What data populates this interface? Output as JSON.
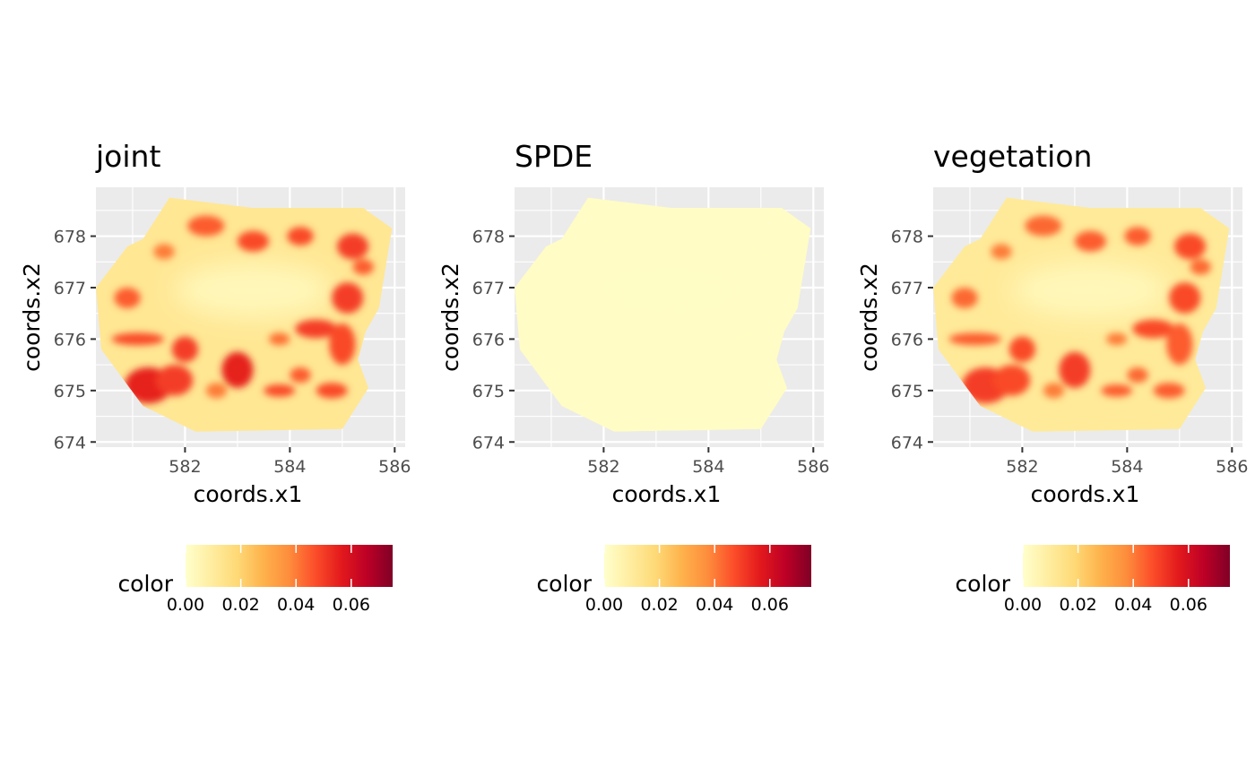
{
  "chart_data": [
    {
      "type": "heatmap",
      "title": "joint",
      "xlabel": "coords.x1",
      "ylabel": "coords.x2",
      "xlim": [
        580.3,
        586.2
      ],
      "ylim": [
        673.9,
        678.95
      ],
      "x_ticks": [
        582,
        584,
        586
      ],
      "y_ticks": [
        674,
        675,
        676,
        677,
        678
      ],
      "x_tick_labels": [
        "582",
        "584",
        "586"
      ],
      "y_tick_labels": [
        "674",
        "675",
        "676",
        "677",
        "678"
      ],
      "grid": true,
      "region_outline": [
        [
          581.7,
          678.75
        ],
        [
          583.3,
          678.55
        ],
        [
          585.4,
          678.55
        ],
        [
          585.95,
          678.15
        ],
        [
          585.7,
          676.6
        ],
        [
          585.45,
          676.15
        ],
        [
          585.3,
          675.6
        ],
        [
          585.5,
          675.05
        ],
        [
          585.0,
          674.25
        ],
        [
          582.2,
          674.2
        ],
        [
          581.2,
          674.7
        ],
        [
          580.4,
          675.8
        ],
        [
          580.3,
          677.0
        ],
        [
          580.9,
          677.8
        ],
        [
          581.2,
          677.95
        ]
      ],
      "background_value": 0.012,
      "core_center": [
        583.3,
        676.95
      ],
      "core_radius": [
        1.5,
        0.55
      ],
      "core_value": 0.004,
      "hotspots": [
        {
          "x": 581.3,
          "y": 675.1,
          "rx": 0.45,
          "ry": 0.35,
          "value": 0.055
        },
        {
          "x": 581.8,
          "y": 675.2,
          "rx": 0.35,
          "ry": 0.3,
          "value": 0.05
        },
        {
          "x": 581.1,
          "y": 676.0,
          "rx": 0.5,
          "ry": 0.12,
          "value": 0.048
        },
        {
          "x": 582.0,
          "y": 675.8,
          "rx": 0.25,
          "ry": 0.25,
          "value": 0.05
        },
        {
          "x": 583.0,
          "y": 675.4,
          "rx": 0.3,
          "ry": 0.35,
          "value": 0.055
        },
        {
          "x": 583.8,
          "y": 675.0,
          "rx": 0.3,
          "ry": 0.12,
          "value": 0.048
        },
        {
          "x": 584.2,
          "y": 675.3,
          "rx": 0.2,
          "ry": 0.15,
          "value": 0.045
        },
        {
          "x": 584.5,
          "y": 676.2,
          "rx": 0.4,
          "ry": 0.18,
          "value": 0.05
        },
        {
          "x": 585.0,
          "y": 675.9,
          "rx": 0.25,
          "ry": 0.4,
          "value": 0.048
        },
        {
          "x": 584.8,
          "y": 675.0,
          "rx": 0.3,
          "ry": 0.15,
          "value": 0.048
        },
        {
          "x": 585.1,
          "y": 676.8,
          "rx": 0.3,
          "ry": 0.3,
          "value": 0.05
        },
        {
          "x": 585.2,
          "y": 677.8,
          "rx": 0.3,
          "ry": 0.25,
          "value": 0.05
        },
        {
          "x": 584.2,
          "y": 678.0,
          "rx": 0.25,
          "ry": 0.18,
          "value": 0.048
        },
        {
          "x": 583.3,
          "y": 677.9,
          "rx": 0.3,
          "ry": 0.2,
          "value": 0.048
        },
        {
          "x": 582.4,
          "y": 678.2,
          "rx": 0.35,
          "ry": 0.2,
          "value": 0.045
        },
        {
          "x": 581.6,
          "y": 677.7,
          "rx": 0.2,
          "ry": 0.15,
          "value": 0.04
        },
        {
          "x": 580.9,
          "y": 676.8,
          "rx": 0.25,
          "ry": 0.2,
          "value": 0.045
        },
        {
          "x": 582.6,
          "y": 675.0,
          "rx": 0.2,
          "ry": 0.15,
          "value": 0.04
        },
        {
          "x": 585.4,
          "y": 677.4,
          "rx": 0.2,
          "ry": 0.15,
          "value": 0.045
        },
        {
          "x": 583.8,
          "y": 676.0,
          "rx": 0.2,
          "ry": 0.12,
          "value": 0.042
        }
      ],
      "legend": {
        "title": "color",
        "position": "bottom",
        "limits": [
          0,
          0.075
        ],
        "ticks": [
          0,
          0.02,
          0.04,
          0.06
        ],
        "tick_labels": [
          "0.00",
          "0.02",
          "0.04",
          "0.06"
        ]
      }
    },
    {
      "type": "heatmap",
      "title": "SPDE",
      "xlabel": "coords.x1",
      "ylabel": "coords.x2",
      "xlim": [
        580.3,
        586.2
      ],
      "ylim": [
        673.9,
        678.95
      ],
      "x_ticks": [
        582,
        584,
        586
      ],
      "y_ticks": [
        674,
        675,
        676,
        677,
        678
      ],
      "x_tick_labels": [
        "582",
        "584",
        "586"
      ],
      "y_tick_labels": [
        "674",
        "675",
        "676",
        "677",
        "678"
      ],
      "grid": true,
      "region_outline": [
        [
          581.7,
          678.75
        ],
        [
          583.3,
          678.55
        ],
        [
          585.4,
          678.55
        ],
        [
          585.95,
          678.15
        ],
        [
          585.7,
          676.6
        ],
        [
          585.45,
          676.15
        ],
        [
          585.3,
          675.6
        ],
        [
          585.5,
          675.05
        ],
        [
          585.0,
          674.25
        ],
        [
          582.2,
          674.2
        ],
        [
          581.2,
          674.7
        ],
        [
          580.4,
          675.8
        ],
        [
          580.3,
          677.0
        ],
        [
          580.9,
          677.8
        ],
        [
          581.2,
          677.95
        ]
      ],
      "background_value": 0.0015,
      "core_center": [
        583.3,
        676.95
      ],
      "core_radius": [
        1.5,
        0.55
      ],
      "core_value": 0.0012,
      "hotspots": [],
      "legend": {
        "title": "color",
        "position": "bottom",
        "limits": [
          0,
          0.075
        ],
        "ticks": [
          0,
          0.02,
          0.04,
          0.06
        ],
        "tick_labels": [
          "0.00",
          "0.02",
          "0.04",
          "0.06"
        ]
      }
    },
    {
      "type": "heatmap",
      "title": "vegetation",
      "xlabel": "coords.x1",
      "ylabel": "coords.x2",
      "xlim": [
        580.3,
        586.2
      ],
      "ylim": [
        673.9,
        678.95
      ],
      "x_ticks": [
        582,
        584,
        586
      ],
      "y_ticks": [
        674,
        675,
        676,
        677,
        678
      ],
      "x_tick_labels": [
        "582",
        "584",
        "586"
      ],
      "y_tick_labels": [
        "674",
        "675",
        "676",
        "677",
        "678"
      ],
      "grid": true,
      "region_outline": [
        [
          581.7,
          678.75
        ],
        [
          583.3,
          678.55
        ],
        [
          585.4,
          678.55
        ],
        [
          585.95,
          678.15
        ],
        [
          585.7,
          676.6
        ],
        [
          585.45,
          676.15
        ],
        [
          585.3,
          675.6
        ],
        [
          585.5,
          675.05
        ],
        [
          585.0,
          674.25
        ],
        [
          582.2,
          674.2
        ],
        [
          581.2,
          674.7
        ],
        [
          580.4,
          675.8
        ],
        [
          580.3,
          677.0
        ],
        [
          580.9,
          677.8
        ],
        [
          581.2,
          677.95
        ]
      ],
      "background_value": 0.011,
      "core_center": [
        583.3,
        676.95
      ],
      "core_radius": [
        1.5,
        0.55
      ],
      "core_value": 0.004,
      "hotspots": [
        {
          "x": 581.3,
          "y": 675.1,
          "rx": 0.45,
          "ry": 0.35,
          "value": 0.05
        },
        {
          "x": 581.8,
          "y": 675.2,
          "rx": 0.35,
          "ry": 0.3,
          "value": 0.048
        },
        {
          "x": 581.1,
          "y": 676.0,
          "rx": 0.5,
          "ry": 0.12,
          "value": 0.045
        },
        {
          "x": 582.0,
          "y": 675.8,
          "rx": 0.25,
          "ry": 0.25,
          "value": 0.048
        },
        {
          "x": 583.0,
          "y": 675.4,
          "rx": 0.3,
          "ry": 0.35,
          "value": 0.05
        },
        {
          "x": 583.8,
          "y": 675.0,
          "rx": 0.3,
          "ry": 0.12,
          "value": 0.045
        },
        {
          "x": 584.2,
          "y": 675.3,
          "rx": 0.2,
          "ry": 0.15,
          "value": 0.043
        },
        {
          "x": 584.5,
          "y": 676.2,
          "rx": 0.4,
          "ry": 0.18,
          "value": 0.048
        },
        {
          "x": 585.0,
          "y": 675.9,
          "rx": 0.25,
          "ry": 0.4,
          "value": 0.045
        },
        {
          "x": 584.8,
          "y": 675.0,
          "rx": 0.3,
          "ry": 0.15,
          "value": 0.045
        },
        {
          "x": 585.1,
          "y": 676.8,
          "rx": 0.3,
          "ry": 0.3,
          "value": 0.048
        },
        {
          "x": 585.2,
          "y": 677.8,
          "rx": 0.3,
          "ry": 0.25,
          "value": 0.048
        },
        {
          "x": 584.2,
          "y": 678.0,
          "rx": 0.25,
          "ry": 0.18,
          "value": 0.045
        },
        {
          "x": 583.3,
          "y": 677.9,
          "rx": 0.3,
          "ry": 0.2,
          "value": 0.045
        },
        {
          "x": 582.4,
          "y": 678.2,
          "rx": 0.35,
          "ry": 0.2,
          "value": 0.043
        },
        {
          "x": 581.6,
          "y": 677.7,
          "rx": 0.2,
          "ry": 0.15,
          "value": 0.04
        },
        {
          "x": 580.9,
          "y": 676.8,
          "rx": 0.25,
          "ry": 0.2,
          "value": 0.043
        },
        {
          "x": 582.6,
          "y": 675.0,
          "rx": 0.2,
          "ry": 0.15,
          "value": 0.04
        },
        {
          "x": 585.4,
          "y": 677.4,
          "rx": 0.2,
          "ry": 0.15,
          "value": 0.043
        },
        {
          "x": 583.8,
          "y": 676.0,
          "rx": 0.2,
          "ry": 0.12,
          "value": 0.04
        }
      ],
      "legend": {
        "title": "color",
        "position": "bottom",
        "limits": [
          0,
          0.075
        ],
        "ticks": [
          0,
          0.02,
          0.04,
          0.06
        ],
        "tick_labels": [
          "0.00",
          "0.02",
          "0.04",
          "0.06"
        ]
      }
    }
  ],
  "colors": {
    "panel_background": "#ebebeb",
    "grid_major": "#ffffff",
    "tick_text": "#4d4d4d",
    "axis_tick": "#333333",
    "colorscale": [
      "#ffffcc",
      "#ffeda0",
      "#fed976",
      "#feb24c",
      "#fd8d3c",
      "#fc4e2a",
      "#e31a1c",
      "#bd0026",
      "#800026"
    ]
  }
}
